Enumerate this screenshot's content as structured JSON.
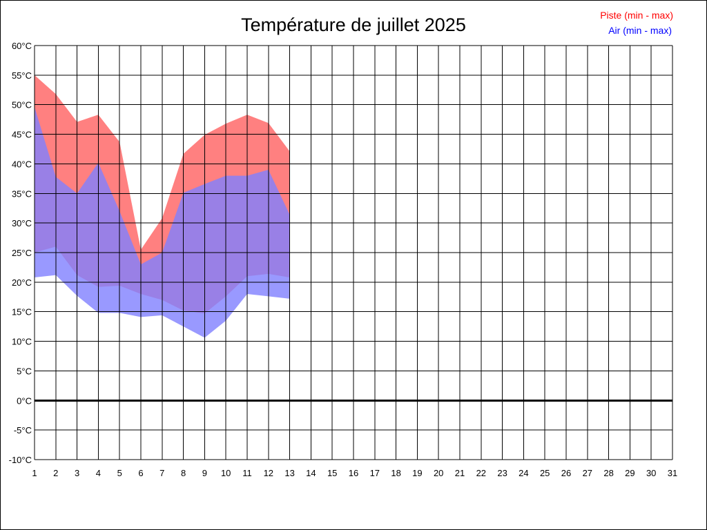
{
  "chart_data": {
    "type": "area",
    "title": "Température de juillet 2025",
    "x_ticks": [
      "1",
      "2",
      "3",
      "4",
      "5",
      "6",
      "7",
      "8",
      "9",
      "10",
      "11",
      "12",
      "13",
      "14",
      "15",
      "16",
      "17",
      "18",
      "19",
      "20",
      "21",
      "22",
      "23",
      "24",
      "25",
      "26",
      "27",
      "28",
      "29",
      "30",
      "31"
    ],
    "y_ticks": [
      "60°C",
      "55°C",
      "50°C",
      "45°C",
      "40°C",
      "35°C",
      "30°C",
      "25°C",
      "20°C",
      "15°C",
      "10°C",
      "5°C",
      "0°C",
      "-5°C",
      "-10°C"
    ],
    "xlim": [
      1,
      31
    ],
    "ylim": [
      -10,
      60
    ],
    "grid": true,
    "zero_line": true,
    "legend_position": "top-right",
    "x": [
      1,
      2,
      3,
      4,
      5,
      6,
      7,
      8,
      9,
      10,
      11,
      12,
      13
    ],
    "series": [
      {
        "name": "Piste (min - max)",
        "color": "#ff8080",
        "min": [
          25,
          26,
          21.2,
          19.2,
          19.4,
          18,
          17,
          15.2,
          14.7,
          17.6,
          21,
          21.4,
          20.8
        ],
        "max": [
          55,
          51.8,
          47.1,
          48.3,
          43.7,
          25.5,
          30.8,
          41.7,
          44.9,
          46.8,
          48.3,
          46.9,
          42.1
        ]
      },
      {
        "name": "Air (min - max)",
        "color": "#8080ff",
        "min": [
          20.8,
          21.2,
          17.7,
          14.8,
          14.8,
          14.1,
          14.4,
          12.5,
          10.6,
          13.5,
          18,
          17.6,
          17.2
        ],
        "max": [
          49.6,
          37.8,
          35,
          40.2,
          32,
          23,
          25,
          35.1,
          36.6,
          38,
          38,
          39,
          31.4
        ]
      }
    ]
  }
}
